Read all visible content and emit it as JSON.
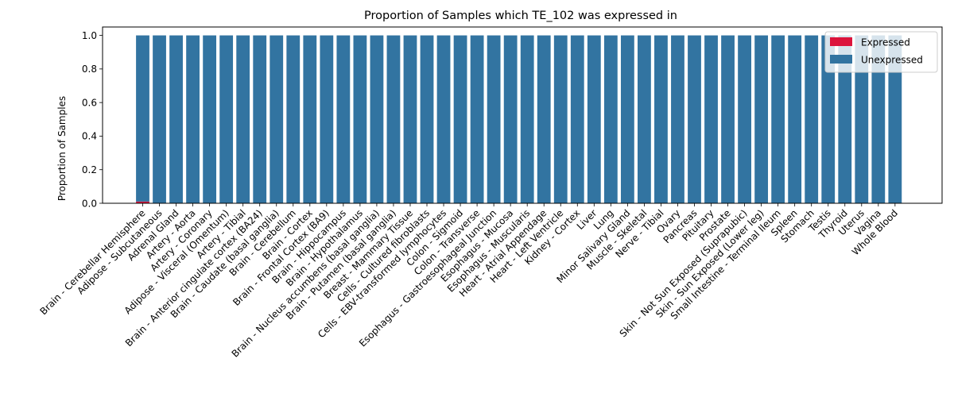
{
  "chart_data": {
    "type": "bar",
    "stacked": true,
    "title": "Proportion of Samples which TE_102 was expressed in",
    "xlabel": "",
    "ylabel": "Proportion of Samples",
    "ylim": [
      0,
      1.05
    ],
    "yticks": [
      "0.0",
      "0.2",
      "0.4",
      "0.6",
      "0.8",
      "1.0"
    ],
    "legend_position": "top-right",
    "grid": false,
    "categories": [
      "Brain - Cerebellar Hemisphere",
      "Adipose - Subcutaneous",
      "Adrenal Gland",
      "Artery - Aorta",
      "Artery - Coronary",
      "Adipose - Visceral (Omentum)",
      "Artery - Tibial",
      "Brain - Anterior cingulate cortex (BA24)",
      "Brain - Caudate (basal ganglia)",
      "Brain - Cerebellum",
      "Brain - Cortex",
      "Brain - Frontal Cortex (BA9)",
      "Brain - Hippocampus",
      "Brain - Hypothalamus",
      "Brain - Nucleus accumbens (basal ganglia)",
      "Brain - Putamen (basal ganglia)",
      "Breast - Mammary Tissue",
      "Cells - Cultured fibroblasts",
      "Cells - EBV-transformed lymphocytes",
      "Colon - Sigmoid",
      "Colon - Transverse",
      "Esophagus - Gastroesophageal Junction",
      "Esophagus - Mucosa",
      "Esophagus - Muscularis",
      "Heart - Atrial Appendage",
      "Heart - Left Ventricle",
      "Kidney - Cortex",
      "Liver",
      "Lung",
      "Minor Salivary Gland",
      "Muscle - Skeletal",
      "Nerve - Tibial",
      "Ovary",
      "Pancreas",
      "Pituitary",
      "Prostate",
      "Skin - Not Sun Exposed (Suprapubic)",
      "Skin - Sun Exposed (Lower leg)",
      "Small Intestine - Terminal Ileum",
      "Spleen",
      "Stomach",
      "Testis",
      "Thyroid",
      "Uterus",
      "Vagina",
      "Whole Blood"
    ],
    "series": [
      {
        "name": "Expressed",
        "color": "#dc143c",
        "values": [
          0.01,
          0,
          0,
          0,
          0,
          0,
          0,
          0,
          0,
          0,
          0,
          0,
          0,
          0,
          0,
          0,
          0,
          0,
          0,
          0,
          0,
          0,
          0,
          0,
          0,
          0,
          0,
          0,
          0,
          0,
          0,
          0,
          0,
          0,
          0,
          0,
          0,
          0,
          0,
          0,
          0,
          0,
          0,
          0,
          0,
          0
        ]
      },
      {
        "name": "Unexpressed",
        "color": "#3274a1",
        "values": [
          0.99,
          1,
          1,
          1,
          1,
          1,
          1,
          1,
          1,
          1,
          1,
          1,
          1,
          1,
          1,
          1,
          1,
          1,
          1,
          1,
          1,
          1,
          1,
          1,
          1,
          1,
          1,
          1,
          1,
          1,
          1,
          1,
          1,
          1,
          1,
          1,
          1,
          1,
          1,
          1,
          1,
          1,
          1,
          1,
          1,
          1
        ]
      }
    ]
  }
}
